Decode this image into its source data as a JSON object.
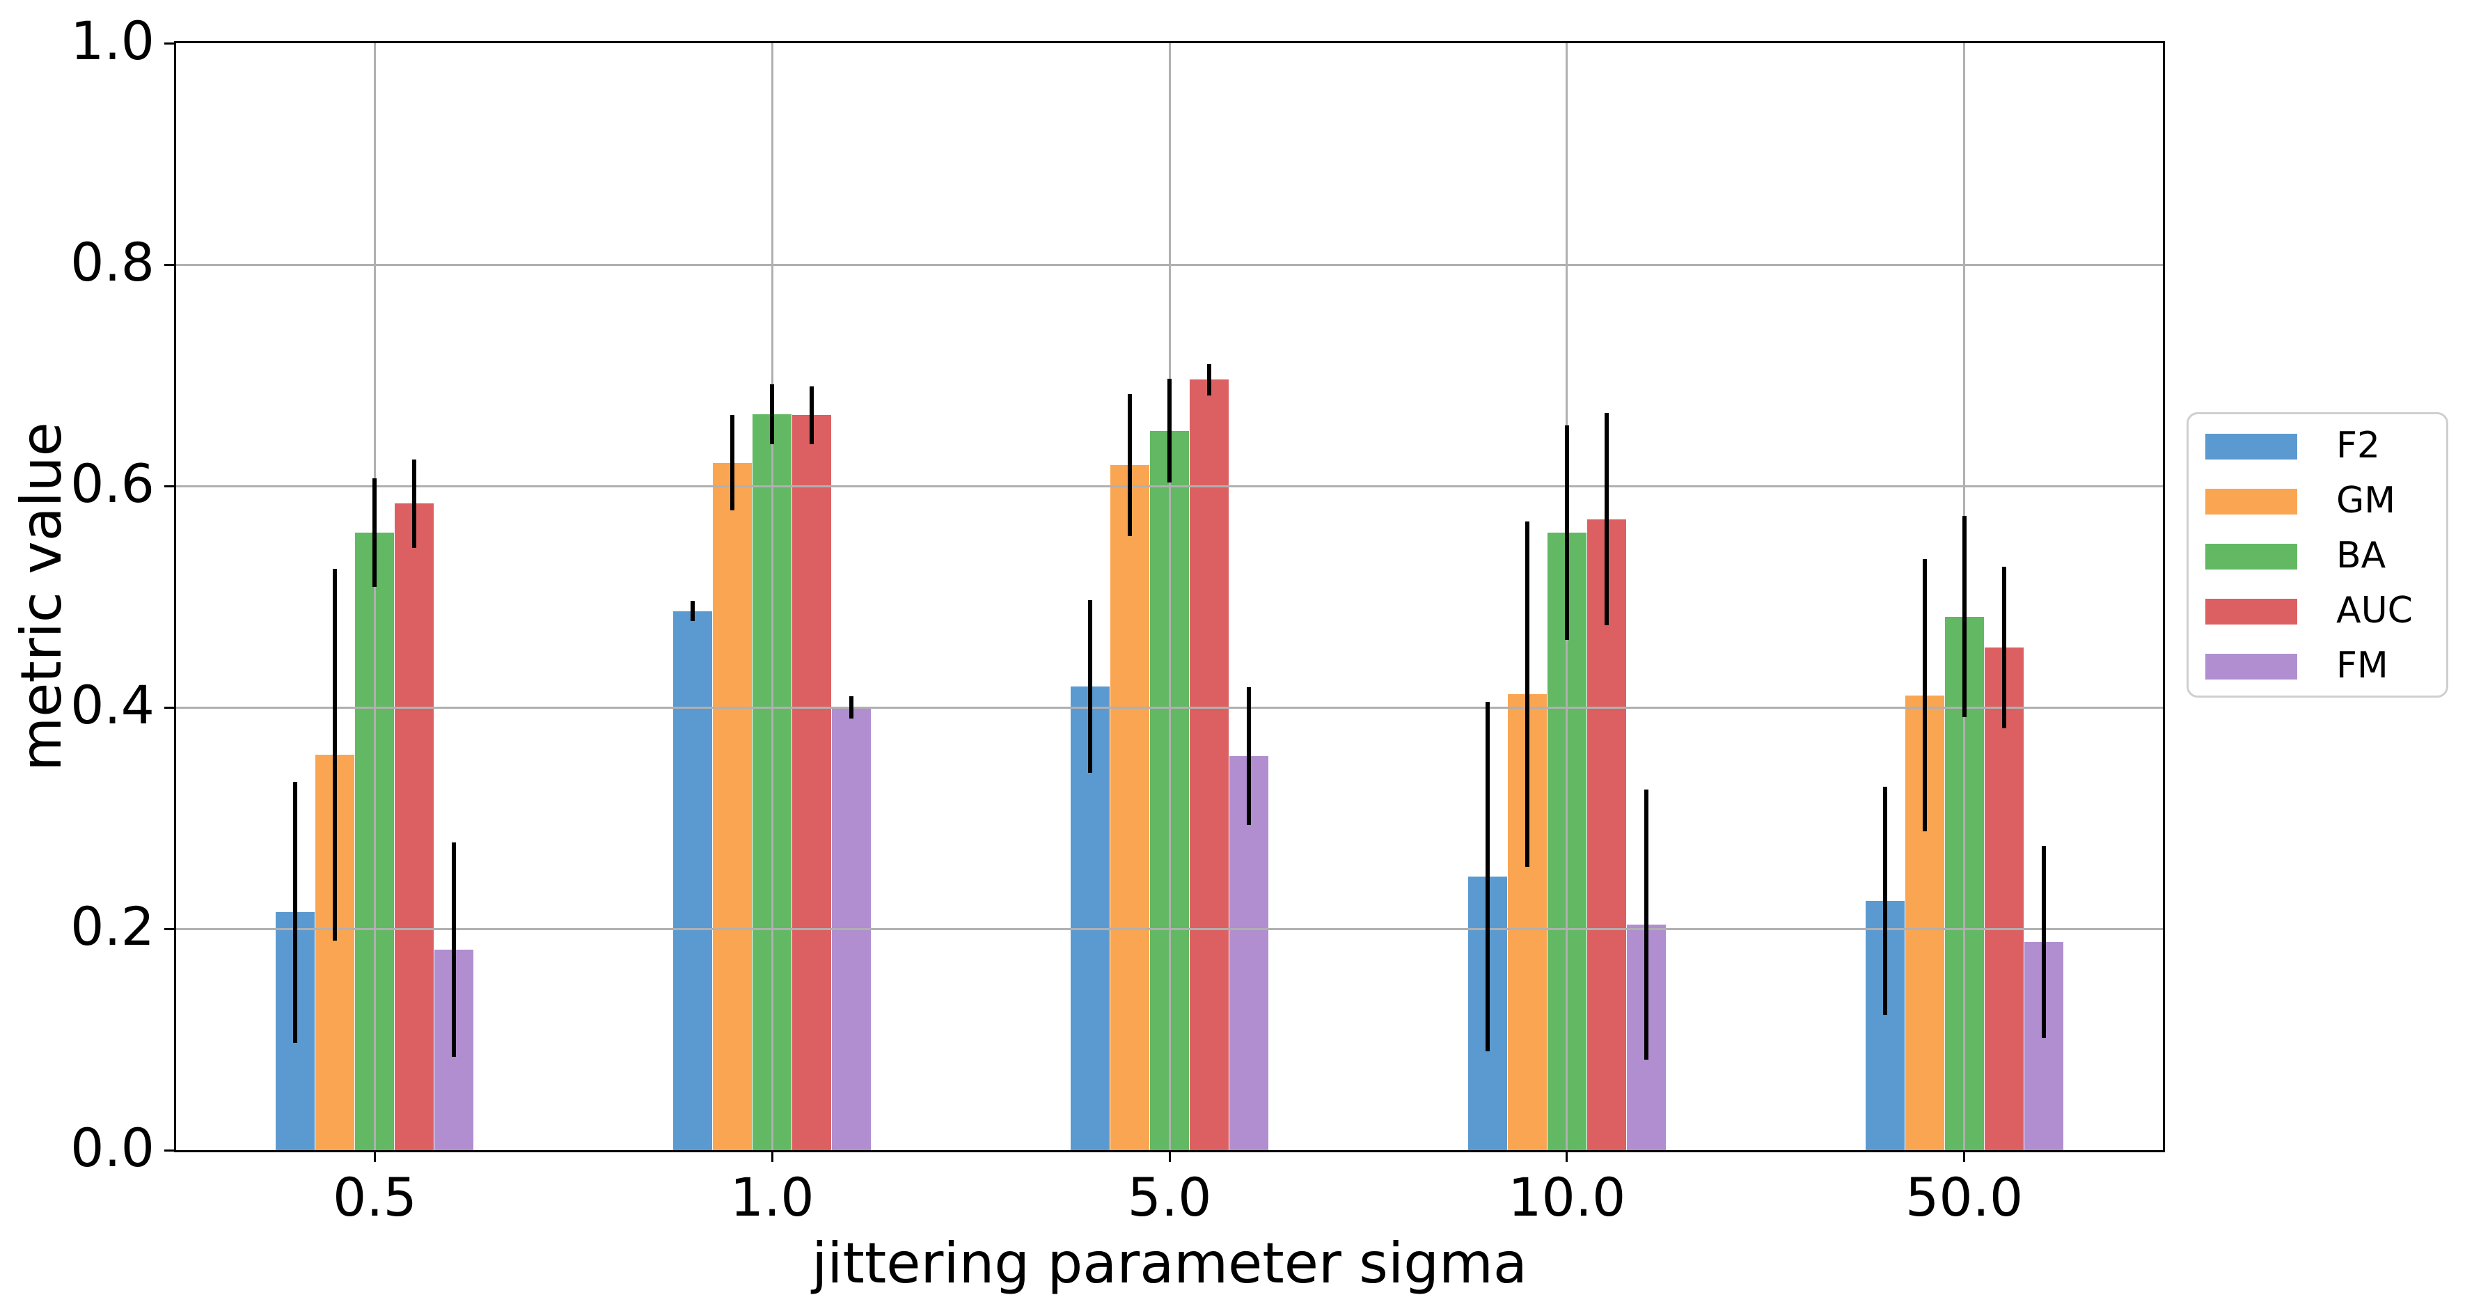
{
  "chart_data": {
    "type": "bar",
    "title": "",
    "xlabel": "jittering parameter sigma",
    "ylabel": "metric value",
    "categories": [
      "0.5",
      "1.0",
      "5.0",
      "10.0",
      "50.0"
    ],
    "ylim": [
      0.0,
      1.0
    ],
    "yticks": [
      "0.0",
      "0.2",
      "0.4",
      "0.6",
      "0.8",
      "1.0"
    ],
    "grid": "on",
    "grid_color": "#b0b0b0",
    "errorbar_color": "#000000",
    "legend_position": "right-outside",
    "series": [
      {
        "name": "F2",
        "color": "#5b9ad0",
        "values": [
          0.215,
          0.487,
          0.419,
          0.247,
          0.225
        ],
        "errors": [
          0.118,
          0.009,
          0.078,
          0.158,
          0.103
        ]
      },
      {
        "name": "GM",
        "color": "#faa551",
        "values": [
          0.357,
          0.621,
          0.619,
          0.412,
          0.411
        ],
        "errors": [
          0.168,
          0.043,
          0.064,
          0.156,
          0.123
        ]
      },
      {
        "name": "BA",
        "color": "#62b863",
        "values": [
          0.558,
          0.665,
          0.65,
          0.558,
          0.482
        ],
        "errors": [
          0.049,
          0.027,
          0.047,
          0.097,
          0.091
        ]
      },
      {
        "name": "AUC",
        "color": "#dc6061",
        "values": [
          0.584,
          0.664,
          0.696,
          0.57,
          0.454
        ],
        "errors": [
          0.04,
          0.026,
          0.014,
          0.096,
          0.073
        ]
      },
      {
        "name": "FM",
        "color": "#b08ed0",
        "values": [
          0.181,
          0.4,
          0.356,
          0.204,
          0.188
        ],
        "errors": [
          0.097,
          0.01,
          0.062,
          0.122,
          0.087
        ]
      }
    ]
  }
}
